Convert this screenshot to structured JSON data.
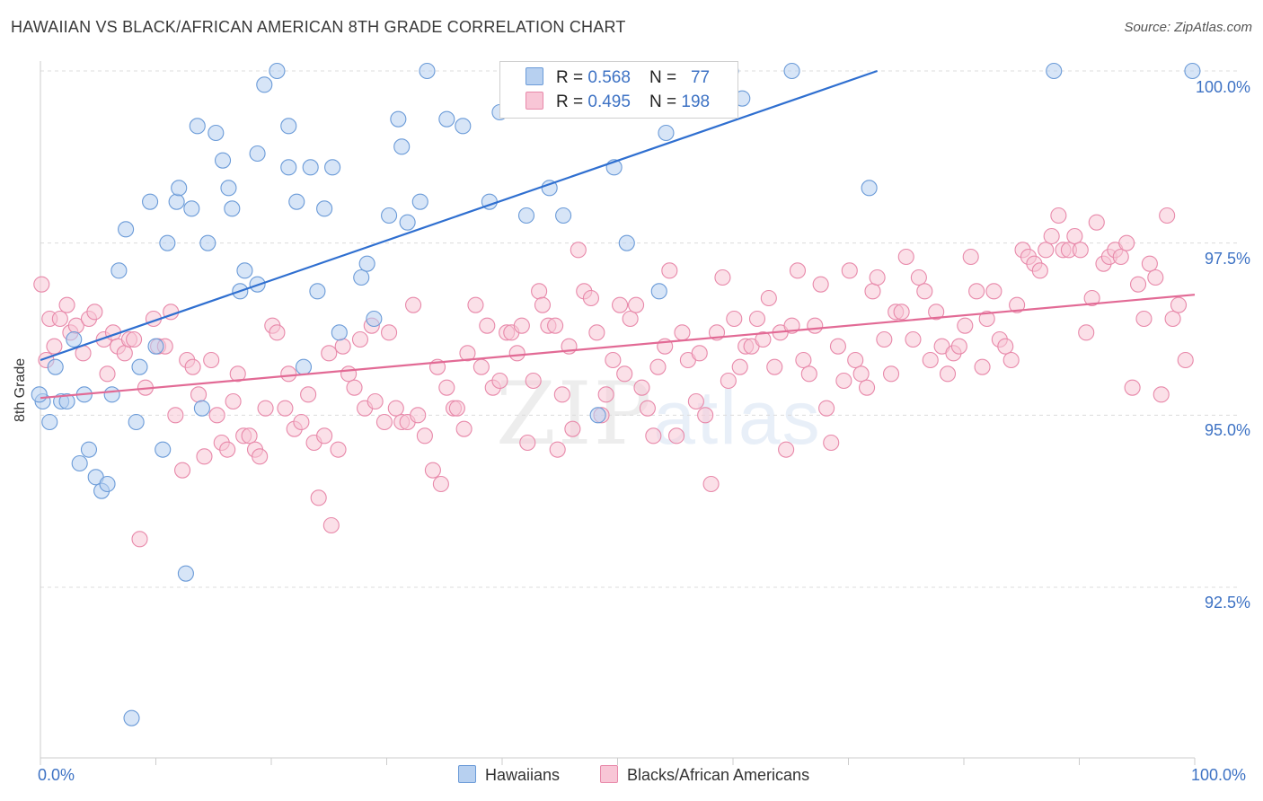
{
  "title": "HAWAIIAN VS BLACK/AFRICAN AMERICAN 8TH GRADE CORRELATION CHART",
  "source": "Source: ZipAtlas.com",
  "watermark": {
    "zip": "ZIP",
    "atlas": "atlas"
  },
  "legend_top": [
    {
      "r_label": "R = ",
      "r": "0.568",
      "n_label": "N = ",
      "n": "77",
      "color": "#6b9bd8",
      "fill": "#b7d0f0"
    },
    {
      "r_label": "R = ",
      "r": "0.495",
      "n_label": "N = ",
      "n": "198",
      "color": "#e889aa",
      "fill": "#f8c6d6"
    }
  ],
  "chart_data": {
    "type": "scatter",
    "title": "HAWAIIAN VS BLACK/AFRICAN AMERICAN 8TH GRADE CORRELATION CHART",
    "xlabel": "",
    "ylabel": "8th Grade",
    "x_tick_labels": [
      "0.0%",
      "100.0%"
    ],
    "y_tick_labels": [
      "100.0%",
      "97.5%",
      "95.0%",
      "92.5%"
    ],
    "y_ticks": [
      100.0,
      97.5,
      95.0,
      92.5
    ],
    "xlim": [
      0,
      100
    ],
    "ylim": [
      90.5,
      100.25
    ],
    "grid": true,
    "legend_position": "bottom",
    "series": [
      {
        "name": "Hawaiians",
        "color": "#6b9bd8",
        "fill": "#b7d0f0",
        "trend": {
          "x": [
            0,
            72.5
          ],
          "y": [
            95.8,
            100.0
          ]
        },
        "points": [
          [
            0.2,
            95.2
          ],
          [
            0.8,
            94.9
          ],
          [
            1.3,
            95.7
          ],
          [
            1.8,
            95.2
          ],
          [
            2.3,
            95.2
          ],
          [
            2.9,
            96.1
          ],
          [
            3.4,
            94.3
          ],
          [
            3.8,
            95.3
          ],
          [
            4.2,
            94.5
          ],
          [
            4.8,
            94.1
          ],
          [
            5.3,
            93.9
          ],
          [
            5.8,
            94.0
          ],
          [
            6.2,
            95.3
          ],
          [
            6.8,
            97.1
          ],
          [
            7.4,
            97.7
          ],
          [
            7.9,
            90.6
          ],
          [
            8.3,
            94.9
          ],
          [
            8.6,
            95.7
          ],
          [
            9.5,
            98.1
          ],
          [
            10.0,
            96.0
          ],
          [
            10.6,
            94.5
          ],
          [
            11.0,
            97.5
          ],
          [
            11.8,
            98.1
          ],
          [
            12.0,
            98.3
          ],
          [
            12.6,
            92.7
          ],
          [
            13.1,
            98.0
          ],
          [
            13.6,
            99.2
          ],
          [
            14.0,
            95.1
          ],
          [
            14.5,
            97.5
          ],
          [
            15.2,
            99.1
          ],
          [
            15.8,
            98.7
          ],
          [
            16.3,
            98.3
          ],
          [
            16.6,
            98.0
          ],
          [
            17.3,
            96.8
          ],
          [
            17.7,
            97.1
          ],
          [
            18.8,
            96.9
          ],
          [
            18.8,
            98.8
          ],
          [
            19.4,
            99.8
          ],
          [
            20.5,
            100.0
          ],
          [
            21.5,
            99.2
          ],
          [
            21.5,
            98.6
          ],
          [
            22.2,
            98.1
          ],
          [
            22.8,
            95.7
          ],
          [
            23.4,
            98.6
          ],
          [
            24.0,
            96.8
          ],
          [
            24.6,
            98.0
          ],
          [
            25.3,
            98.6
          ],
          [
            25.9,
            96.2
          ],
          [
            27.8,
            97.0
          ],
          [
            28.3,
            97.2
          ],
          [
            28.9,
            96.4
          ],
          [
            30.2,
            97.9
          ],
          [
            31.0,
            99.3
          ],
          [
            31.3,
            98.9
          ],
          [
            31.8,
            97.8
          ],
          [
            32.9,
            98.1
          ],
          [
            33.5,
            100.0
          ],
          [
            35.2,
            99.3
          ],
          [
            36.6,
            99.2
          ],
          [
            38.9,
            98.1
          ],
          [
            39.8,
            99.4
          ],
          [
            42.1,
            97.9
          ],
          [
            44.1,
            98.3
          ],
          [
            45.3,
            97.9
          ],
          [
            48.3,
            95.0
          ],
          [
            49.7,
            98.6
          ],
          [
            50.6,
            100.0
          ],
          [
            50.8,
            97.5
          ],
          [
            53.6,
            96.8
          ],
          [
            54.2,
            99.1
          ],
          [
            59.8,
            100.0
          ],
          [
            60.8,
            99.6
          ],
          [
            65.1,
            100.0
          ],
          [
            71.8,
            98.3
          ],
          [
            87.8,
            100.0
          ],
          [
            99.8,
            100.0
          ],
          [
            -0.1,
            95.3
          ]
        ]
      },
      {
        "name": "Blacks/African Americans",
        "color": "#e889aa",
        "fill": "#f8c6d6",
        "trend": {
          "x": [
            0,
            100
          ],
          "y": [
            95.25,
            96.75
          ]
        },
        "points": [
          [
            0.1,
            96.9
          ],
          [
            0.8,
            96.4
          ],
          [
            1.2,
            96.0
          ],
          [
            1.7,
            96.4
          ],
          [
            2.3,
            96.6
          ],
          [
            2.6,
            96.2
          ],
          [
            3.1,
            96.3
          ],
          [
            3.7,
            95.9
          ],
          [
            4.2,
            96.4
          ],
          [
            4.7,
            96.5
          ],
          [
            5.5,
            96.1
          ],
          [
            5.8,
            95.6
          ],
          [
            6.3,
            96.2
          ],
          [
            6.7,
            96.0
          ],
          [
            7.3,
            95.9
          ],
          [
            7.7,
            96.1
          ],
          [
            8.1,
            96.1
          ],
          [
            8.6,
            93.2
          ],
          [
            9.1,
            95.4
          ],
          [
            9.8,
            96.4
          ],
          [
            10.2,
            96.0
          ],
          [
            10.8,
            96.0
          ],
          [
            11.3,
            96.5
          ],
          [
            11.7,
            95.0
          ],
          [
            12.3,
            94.2
          ],
          [
            12.7,
            95.8
          ],
          [
            13.2,
            95.7
          ],
          [
            13.7,
            95.3
          ],
          [
            14.2,
            94.4
          ],
          [
            14.8,
            95.8
          ],
          [
            15.3,
            95.0
          ],
          [
            15.7,
            94.6
          ],
          [
            16.2,
            94.5
          ],
          [
            16.7,
            95.2
          ],
          [
            17.1,
            95.6
          ],
          [
            17.6,
            94.7
          ],
          [
            18.1,
            94.7
          ],
          [
            18.6,
            94.5
          ],
          [
            19.0,
            94.4
          ],
          [
            19.5,
            95.1
          ],
          [
            20.1,
            96.3
          ],
          [
            20.5,
            96.2
          ],
          [
            21.2,
            95.1
          ],
          [
            21.5,
            95.6
          ],
          [
            22.0,
            94.8
          ],
          [
            22.6,
            94.9
          ],
          [
            23.2,
            95.3
          ],
          [
            23.7,
            94.6
          ],
          [
            24.1,
            93.8
          ],
          [
            24.6,
            94.7
          ],
          [
            25.0,
            95.9
          ],
          [
            25.8,
            94.5
          ],
          [
            25.2,
            93.4
          ],
          [
            26.2,
            96.0
          ],
          [
            26.7,
            95.6
          ],
          [
            27.2,
            95.4
          ],
          [
            27.7,
            96.1
          ],
          [
            28.1,
            95.1
          ],
          [
            28.7,
            96.3
          ],
          [
            29.0,
            95.2
          ],
          [
            29.8,
            94.9
          ],
          [
            30.2,
            96.2
          ],
          [
            30.8,
            95.1
          ],
          [
            31.3,
            94.9
          ],
          [
            31.8,
            94.9
          ],
          [
            32.3,
            96.6
          ],
          [
            32.7,
            95.0
          ],
          [
            33.3,
            94.7
          ],
          [
            34.0,
            94.2
          ],
          [
            34.4,
            95.7
          ],
          [
            34.7,
            94.0
          ],
          [
            35.2,
            95.4
          ],
          [
            35.8,
            95.1
          ],
          [
            36.1,
            95.1
          ],
          [
            36.7,
            94.8
          ],
          [
            37.0,
            95.9
          ],
          [
            37.7,
            96.6
          ],
          [
            38.2,
            95.7
          ],
          [
            38.7,
            96.3
          ],
          [
            39.2,
            95.4
          ],
          [
            39.8,
            95.5
          ],
          [
            40.4,
            96.2
          ],
          [
            40.8,
            96.2
          ],
          [
            41.3,
            95.9
          ],
          [
            41.7,
            96.3
          ],
          [
            42.2,
            94.6
          ],
          [
            42.7,
            95.5
          ],
          [
            43.2,
            96.8
          ],
          [
            43.5,
            96.6
          ],
          [
            44.0,
            96.3
          ],
          [
            44.6,
            96.3
          ],
          [
            44.8,
            94.5
          ],
          [
            45.2,
            95.3
          ],
          [
            45.8,
            96.0
          ],
          [
            46.1,
            94.8
          ],
          [
            46.6,
            97.4
          ],
          [
            47.1,
            96.8
          ],
          [
            47.7,
            96.7
          ],
          [
            48.2,
            96.2
          ],
          [
            48.6,
            95.0
          ],
          [
            49.0,
            95.3
          ],
          [
            49.6,
            95.8
          ],
          [
            50.2,
            96.6
          ],
          [
            50.6,
            95.6
          ],
          [
            51.1,
            96.4
          ],
          [
            51.6,
            96.6
          ],
          [
            52.1,
            95.4
          ],
          [
            52.6,
            95.1
          ],
          [
            53.1,
            94.7
          ],
          [
            53.5,
            95.7
          ],
          [
            54.1,
            96.0
          ],
          [
            54.5,
            97.1
          ],
          [
            55.1,
            94.7
          ],
          [
            55.6,
            96.2
          ],
          [
            56.1,
            95.8
          ],
          [
            56.8,
            95.2
          ],
          [
            57.1,
            95.9
          ],
          [
            57.6,
            95.0
          ],
          [
            58.1,
            94.0
          ],
          [
            58.6,
            96.2
          ],
          [
            59.1,
            97.0
          ],
          [
            59.6,
            95.5
          ],
          [
            60.1,
            96.4
          ],
          [
            60.6,
            95.7
          ],
          [
            61.1,
            96.0
          ],
          [
            61.6,
            96.0
          ],
          [
            62.1,
            96.4
          ],
          [
            62.6,
            96.1
          ],
          [
            63.1,
            96.7
          ],
          [
            63.6,
            95.7
          ],
          [
            64.1,
            96.2
          ],
          [
            64.6,
            94.5
          ],
          [
            65.1,
            96.3
          ],
          [
            65.6,
            97.1
          ],
          [
            66.1,
            95.8
          ],
          [
            66.6,
            95.6
          ],
          [
            67.1,
            96.3
          ],
          [
            67.6,
            96.9
          ],
          [
            68.1,
            95.1
          ],
          [
            68.5,
            94.6
          ],
          [
            69.1,
            96.0
          ],
          [
            69.6,
            95.5
          ],
          [
            70.1,
            97.1
          ],
          [
            70.6,
            95.8
          ],
          [
            71.1,
            95.6
          ],
          [
            71.6,
            95.4
          ],
          [
            72.1,
            96.8
          ],
          [
            72.5,
            97.0
          ],
          [
            73.1,
            96.1
          ],
          [
            73.7,
            95.6
          ],
          [
            74.1,
            96.5
          ],
          [
            74.6,
            96.5
          ],
          [
            75.0,
            97.3
          ],
          [
            75.6,
            96.1
          ],
          [
            76.1,
            97.0
          ],
          [
            76.6,
            96.8
          ],
          [
            77.1,
            95.8
          ],
          [
            77.6,
            96.5
          ],
          [
            78.1,
            96.0
          ],
          [
            78.6,
            95.6
          ],
          [
            79.1,
            95.9
          ],
          [
            79.6,
            96.0
          ],
          [
            80.1,
            96.3
          ],
          [
            80.6,
            97.3
          ],
          [
            81.1,
            96.8
          ],
          [
            81.6,
            95.7
          ],
          [
            82.0,
            96.4
          ],
          [
            82.6,
            96.8
          ],
          [
            83.1,
            96.1
          ],
          [
            83.6,
            96.0
          ],
          [
            84.1,
            95.8
          ],
          [
            84.6,
            96.6
          ],
          [
            85.1,
            97.4
          ],
          [
            85.6,
            97.3
          ],
          [
            86.1,
            97.2
          ],
          [
            86.6,
            97.1
          ],
          [
            87.1,
            97.4
          ],
          [
            87.6,
            97.6
          ],
          [
            88.2,
            97.9
          ],
          [
            88.6,
            97.4
          ],
          [
            89.1,
            97.4
          ],
          [
            89.6,
            97.6
          ],
          [
            90.1,
            97.4
          ],
          [
            90.6,
            96.2
          ],
          [
            91.1,
            96.7
          ],
          [
            91.5,
            97.8
          ],
          [
            92.1,
            97.2
          ],
          [
            92.6,
            97.3
          ],
          [
            93.1,
            97.4
          ],
          [
            93.6,
            97.3
          ],
          [
            94.1,
            97.5
          ],
          [
            94.6,
            95.4
          ],
          [
            95.1,
            96.9
          ],
          [
            95.6,
            96.4
          ],
          [
            96.1,
            97.2
          ],
          [
            96.6,
            97.0
          ],
          [
            97.1,
            95.3
          ],
          [
            97.6,
            97.9
          ],
          [
            98.1,
            96.4
          ],
          [
            98.6,
            96.6
          ],
          [
            99.2,
            95.8
          ],
          [
            0.5,
            95.8
          ]
        ]
      }
    ]
  },
  "legend_bottom": [
    {
      "label": "Hawaiians",
      "color": "#6b9bd8",
      "fill": "#b7d0f0"
    },
    {
      "label": "Blacks/African Americans",
      "color": "#e889aa",
      "fill": "#f8c6d6"
    }
  ],
  "colors": {
    "tick_text": "#3d72c4",
    "grid": "#dcdcdc",
    "axis": "#cccccc"
  }
}
